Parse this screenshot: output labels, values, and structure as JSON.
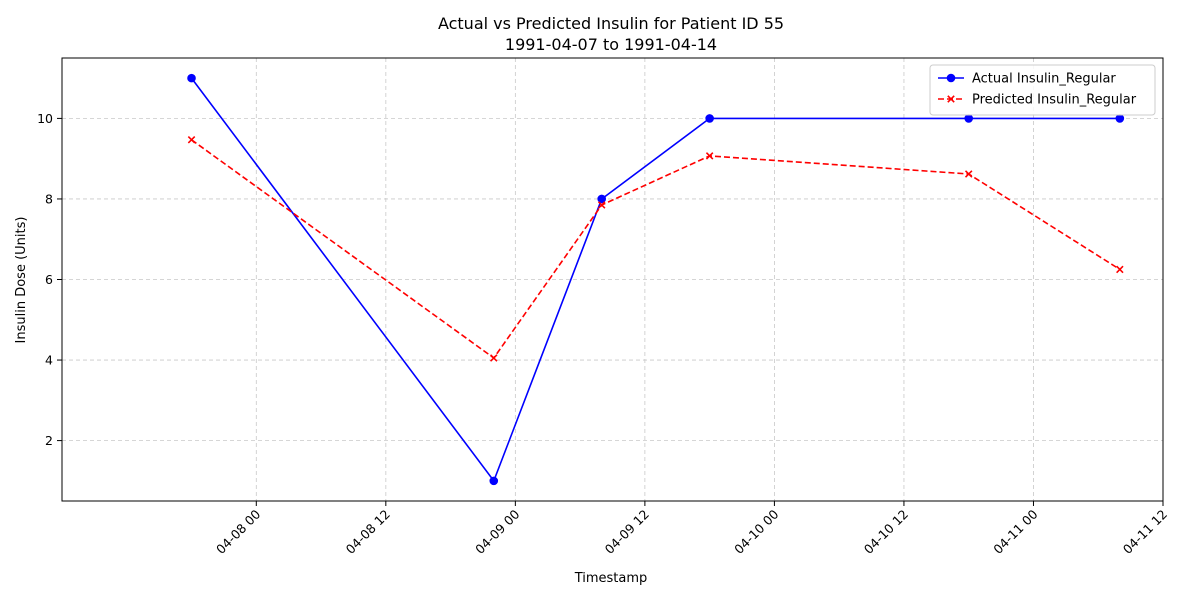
{
  "chart_data": {
    "type": "line",
    "title": "Actual vs Predicted Insulin for Patient ID 55",
    "subtitle": "1991-04-07 to 1991-04-14",
    "xlabel": "Timestamp",
    "ylabel": "Insulin Dose (Units)",
    "x_type": "datetime",
    "xlim": [
      "1991-04-07T06:00",
      "1991-04-11T12:00"
    ],
    "ylim": [
      0.5,
      11.5
    ],
    "x_ticks": [
      {
        "value": "1991-04-08T00:00",
        "label": "04-08 00"
      },
      {
        "value": "1991-04-08T12:00",
        "label": "04-08 12"
      },
      {
        "value": "1991-04-09T00:00",
        "label": "04-09 00"
      },
      {
        "value": "1991-04-09T12:00",
        "label": "04-09 12"
      },
      {
        "value": "1991-04-10T00:00",
        "label": "04-10 00"
      },
      {
        "value": "1991-04-10T12:00",
        "label": "04-10 12"
      },
      {
        "value": "1991-04-11T00:00",
        "label": "04-11 00"
      },
      {
        "value": "1991-04-11T12:00",
        "label": "04-11 12"
      }
    ],
    "y_ticks": [
      2,
      4,
      6,
      8,
      10
    ],
    "grid": true,
    "legend_position": "top-right",
    "series": [
      {
        "name": "Actual Insulin_Regular",
        "color": "#0000ff",
        "line_style": "solid",
        "marker": "circle",
        "points": [
          {
            "x": "1991-04-07T18:00",
            "y": 11
          },
          {
            "x": "1991-04-08T22:00",
            "y": 1
          },
          {
            "x": "1991-04-09T08:00",
            "y": 8
          },
          {
            "x": "1991-04-09T18:00",
            "y": 10
          },
          {
            "x": "1991-04-10T18:00",
            "y": 10
          },
          {
            "x": "1991-04-11T08:00",
            "y": 10
          }
        ]
      },
      {
        "name": "Predicted Insulin_Regular",
        "color": "#ff0000",
        "line_style": "dashed",
        "marker": "x",
        "points": [
          {
            "x": "1991-04-07T18:00",
            "y": 9.47
          },
          {
            "x": "1991-04-08T22:00",
            "y": 4.05
          },
          {
            "x": "1991-04-09T08:00",
            "y": 7.85
          },
          {
            "x": "1991-04-09T18:00",
            "y": 9.07
          },
          {
            "x": "1991-04-10T18:00",
            "y": 8.62
          },
          {
            "x": "1991-04-11T08:00",
            "y": 6.25
          }
        ]
      }
    ]
  }
}
